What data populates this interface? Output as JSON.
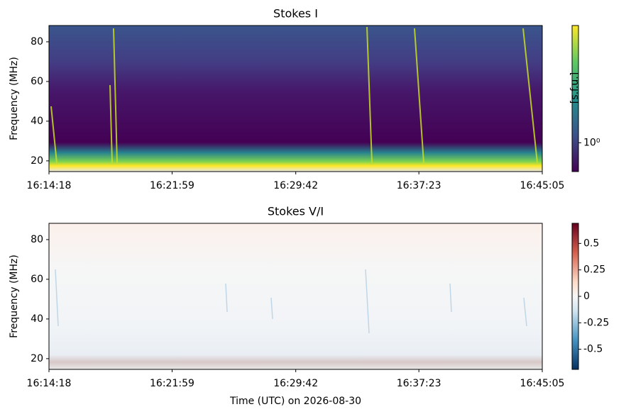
{
  "chart_data": [
    {
      "type": "spectrogram",
      "title": "Stokes I",
      "ylabel": "Frequency (MHz)",
      "xlim": [
        58458,
        60305
      ],
      "xticks": [
        {
          "value": 58458,
          "label": "16:14:18"
        },
        {
          "value": 58919,
          "label": "16:21:59"
        },
        {
          "value": 59382,
          "label": "16:29:42"
        },
        {
          "value": 59843,
          "label": "16:37:23"
        },
        {
          "value": 60305,
          "label": "16:45:05"
        }
      ],
      "ylim": [
        14.6,
        88.2
      ],
      "yticks": [
        20,
        40,
        60,
        80
      ],
      "colorbar": {
        "label": "[s.f.u.]",
        "colormap": "viridis",
        "log": true,
        "clim": [
          0.6,
          8
        ],
        "ticks": [
          {
            "value": 1,
            "label": "10⁰"
          }
        ]
      }
    },
    {
      "type": "spectrogram",
      "title": "Stokes V/I",
      "ylabel": "Frequency (MHz)",
      "xlabel": "Time (UTC) on 2026-08-30",
      "xlim": [
        58458,
        60305
      ],
      "xticks": [
        {
          "value": 58458,
          "label": "16:14:18"
        },
        {
          "value": 58919,
          "label": "16:21:59"
        },
        {
          "value": 59382,
          "label": "16:29:42"
        },
        {
          "value": 59843,
          "label": "16:37:23"
        },
        {
          "value": 60305,
          "label": "16:45:05"
        }
      ],
      "ylim": [
        14.6,
        88.2
      ],
      "yticks": [
        20,
        40,
        60,
        80
      ],
      "colorbar": {
        "colormap": "RdBu_r",
        "log": false,
        "clim": [
          -0.69,
          0.69
        ],
        "ticks": [
          -0.5,
          -0.25,
          0.0,
          0.25,
          0.5
        ]
      }
    }
  ]
}
